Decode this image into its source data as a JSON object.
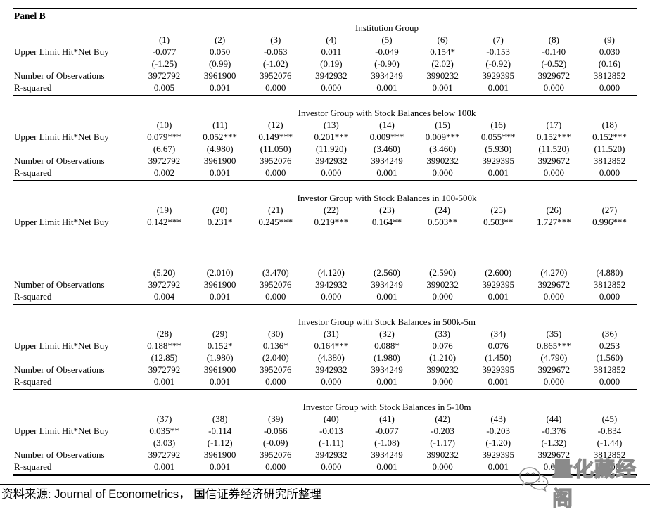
{
  "panel_label": "Panel B",
  "row_labels": {
    "coef": "Upper Limit Hit*Net Buy",
    "obs": "Number of Observations",
    "rsq": "R-squared"
  },
  "sections": [
    {
      "group": "Institution Group",
      "cols": [
        "(1)",
        "(2)",
        "(3)",
        "(4)",
        "(5)",
        "(6)",
        "(7)",
        "(8)",
        "(9)"
      ],
      "coef": [
        "-0.077",
        "0.050",
        "-0.063",
        "0.011",
        "-0.049",
        "0.154*",
        "-0.153",
        "-0.140",
        "0.030"
      ],
      "tstat": [
        "(-1.25)",
        "(0.99)",
        "(-1.02)",
        "(0.19)",
        "(-0.90)",
        "(2.02)",
        "(-0.92)",
        "(-0.52)",
        "(0.16)"
      ],
      "obs": [
        "3972792",
        "3961900",
        "3952076",
        "3942932",
        "3934249",
        "3990232",
        "3929395",
        "3929672",
        "3812852"
      ],
      "rsq": [
        "0.005",
        "0.001",
        "0.000",
        "0.000",
        "0.001",
        "0.001",
        "0.001",
        "0.000",
        "0.000"
      ],
      "gap": false
    },
    {
      "group": "Investor Group with Stock Balances below 100k",
      "cols": [
        "(10)",
        "(11)",
        "(12)",
        "(13)",
        "(14)",
        "(15)",
        "(16)",
        "(17)",
        "(18)"
      ],
      "coef": [
        "0.079***",
        "0.052***",
        "0.149***",
        "0.201***",
        "0.009***",
        "0.009***",
        "0.055***",
        "0.152***",
        "0.152***"
      ],
      "tstat": [
        "(6.67)",
        "(4.980)",
        "(11.050)",
        "(11.920)",
        "(3.460)",
        "(3.460)",
        "(5.930)",
        "(11.520)",
        "(11.520)"
      ],
      "obs": [
        "3972792",
        "3961900",
        "3952076",
        "3942932",
        "3934249",
        "3990232",
        "3929395",
        "3929672",
        "3812852"
      ],
      "rsq": [
        "0.002",
        "0.001",
        "0.000",
        "0.000",
        "0.001",
        "0.000",
        "0.001",
        "0.000",
        "0.000"
      ],
      "gap": false
    },
    {
      "group": "Investor Group with Stock Balances in 100-500k",
      "cols": [
        "(19)",
        "(20)",
        "(21)",
        "(22)",
        "(23)",
        "(24)",
        "(25)",
        "(26)",
        "(27)"
      ],
      "coef": [
        "0.142***",
        "0.231*",
        "0.245***",
        "0.219***",
        "0.164**",
        "0.503**",
        "0.503**",
        "1.727***",
        "0.996***"
      ],
      "tstat": [
        "(5.20)",
        "(2.010)",
        "(3.470)",
        "(4.120)",
        "(2.560)",
        "(2.590)",
        "(2.600)",
        "(4.270)",
        "(4.880)"
      ],
      "obs": [
        "3972792",
        "3961900",
        "3952076",
        "3942932",
        "3934249",
        "3990232",
        "3929395",
        "3929672",
        "3812852"
      ],
      "rsq": [
        "0.004",
        "0.001",
        "0.000",
        "0.000",
        "0.001",
        "0.000",
        "0.001",
        "0.000",
        "0.000"
      ],
      "gap": true
    },
    {
      "group": "Investor Group with Stock Balances in 500k-5m",
      "cols": [
        "(28)",
        "(29)",
        "(30)",
        "(31)",
        "(32)",
        "(33)",
        "(34)",
        "(35)",
        "(36)"
      ],
      "coef": [
        "0.188***",
        "0.152*",
        "0.136*",
        "0.164***",
        "0.088*",
        "0.076",
        "0.076",
        "0.865***",
        "0.253"
      ],
      "tstat": [
        "(12.85)",
        "(1.980)",
        "(2.040)",
        "(4.380)",
        "(1.980)",
        "(1.210)",
        "(1.450)",
        "(4.790)",
        "(1.560)"
      ],
      "obs": [
        "3972792",
        "3961900",
        "3952076",
        "3942932",
        "3934249",
        "3990232",
        "3929395",
        "3929672",
        "3812852"
      ],
      "rsq": [
        "0.001",
        "0.001",
        "0.000",
        "0.000",
        "0.001",
        "0.000",
        "0.001",
        "0.000",
        "0.000"
      ],
      "gap": false
    },
    {
      "group": "Investor Group with Stock Balances in 5-10m",
      "cols": [
        "(37)",
        "(38)",
        "(39)",
        "(40)",
        "(41)",
        "(42)",
        "(43)",
        "(44)",
        "(45)"
      ],
      "coef": [
        "0.035**",
        "-0.114",
        "-0.066",
        "-0.013",
        "-0.077",
        "-0.203",
        "-0.203",
        "-0.376",
        "-0.834"
      ],
      "tstat": [
        "(3.03)",
        "(-1.12)",
        "(-0.09)",
        "(-1.11)",
        "(-1.08)",
        "(-1.17)",
        "(-1.20)",
        "(-1.32)",
        "(-1.44)"
      ],
      "obs": [
        "3972792",
        "3961900",
        "3952076",
        "3942932",
        "3934249",
        "3990232",
        "3929395",
        "3929672",
        "3812852"
      ],
      "rsq": [
        "0.001",
        "0.001",
        "0.000",
        "0.000",
        "0.001",
        "0.000",
        "0.001",
        "0.000",
        "0.000"
      ],
      "gap": false
    }
  ],
  "footer": {
    "source": "资料来源: Journal of Econometrics， 国信证券经济研究所整理"
  },
  "watermark": {
    "icon": "wechat-chat-bubbles",
    "text": "量化藏经阁",
    "color": "#8a8a8a"
  }
}
